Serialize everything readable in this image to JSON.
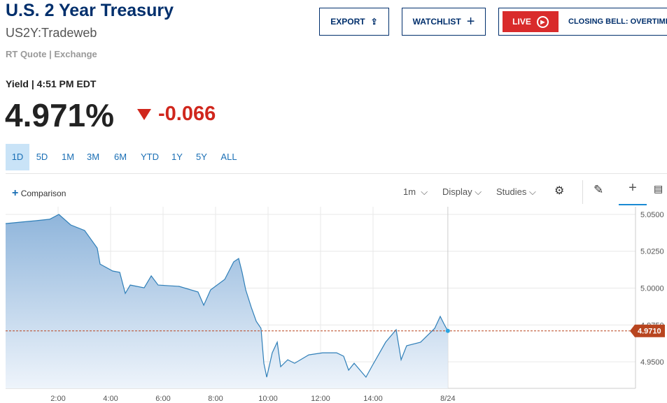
{
  "header": {
    "title": "U.S. 2 Year Treasury",
    "symbol": "US2Y:Tradeweb",
    "source": "RT Quote | Exchange"
  },
  "buttons": {
    "export": "EXPORT",
    "watchlist": "WATCHLIST",
    "live": "LIVE",
    "show": "CLOSING BELL: OVERTIME"
  },
  "quote": {
    "label": "Yield | 4:51 PM EDT",
    "price": "4.971%",
    "change": "-0.066"
  },
  "ranges": [
    "1D",
    "5D",
    "1M",
    "3M",
    "6M",
    "YTD",
    "1Y",
    "5Y",
    "ALL"
  ],
  "toolbar": {
    "comparison": "Comparison",
    "interval": "1m",
    "display": "Display",
    "studies": "Studies"
  },
  "chart_data": {
    "type": "line",
    "color": "#2f7fb8",
    "grid": true,
    "x": [
      0.0,
      0.61,
      1.15,
      1.68,
      2.03,
      2.48,
      3.01,
      3.49,
      3.6,
      4.08,
      4.35,
      4.56,
      4.75,
      5.28,
      5.55,
      5.81,
      6.61,
      7.33,
      7.55,
      7.81,
      8.35,
      8.69,
      8.88,
      9.01,
      9.15,
      9.36,
      9.55,
      9.73,
      9.84,
      9.95,
      10.16,
      10.35,
      10.48,
      10.75,
      11.01,
      11.55,
      12.08,
      12.61,
      12.88,
      13.07,
      13.28,
      13.73,
      13.95,
      14.48,
      14.88,
      15.07,
      15.28,
      15.81,
      16.35,
      16.56,
      16.72,
      16.85
    ],
    "values": [
      5.0438,
      5.0448,
      5.0457,
      5.0467,
      5.05,
      5.0429,
      5.0391,
      5.0272,
      5.0163,
      5.0116,
      5.0107,
      4.9964,
      5.0021,
      5.0002,
      5.0083,
      5.0021,
      5.0012,
      4.9974,
      4.9884,
      4.9988,
      5.0059,
      5.0178,
      5.0201,
      5.0107,
      4.9988,
      4.987,
      4.9775,
      4.9727,
      4.949,
      4.9396,
      4.9561,
      4.9633,
      4.9467,
      4.9514,
      4.949,
      4.9547,
      4.9561,
      4.9561,
      4.9538,
      4.9443,
      4.949,
      4.9396,
      4.9467,
      4.9633,
      4.9718,
      4.9514,
      4.9609,
      4.9633,
      4.9727,
      4.9808,
      4.9751,
      4.971
    ],
    "xlim": [
      0,
      24
    ],
    "xticks": [
      {
        "value": 2,
        "label": "2:00"
      },
      {
        "value": 4,
        "label": "4:00"
      },
      {
        "value": 6,
        "label": "6:00"
      },
      {
        "value": 8,
        "label": "8:00"
      },
      {
        "value": 10,
        "label": "10:00"
      },
      {
        "value": 12,
        "label": "12:00"
      },
      {
        "value": 14,
        "label": "14:00"
      },
      {
        "value": 16.85,
        "label": "8/24"
      }
    ],
    "ylim": [
      4.932,
      5.0552
    ],
    "yticks": [
      {
        "value": 4.95,
        "label": "4.9500"
      },
      {
        "value": 4.975,
        "label": "4.9750"
      },
      {
        "value": 5,
        "label": "5.0000"
      },
      {
        "value": 5.025,
        "label": "5.0250"
      },
      {
        "value": 5.05,
        "label": "5.0500"
      }
    ],
    "last": {
      "value": 4.971,
      "label": "4.9710"
    }
  }
}
